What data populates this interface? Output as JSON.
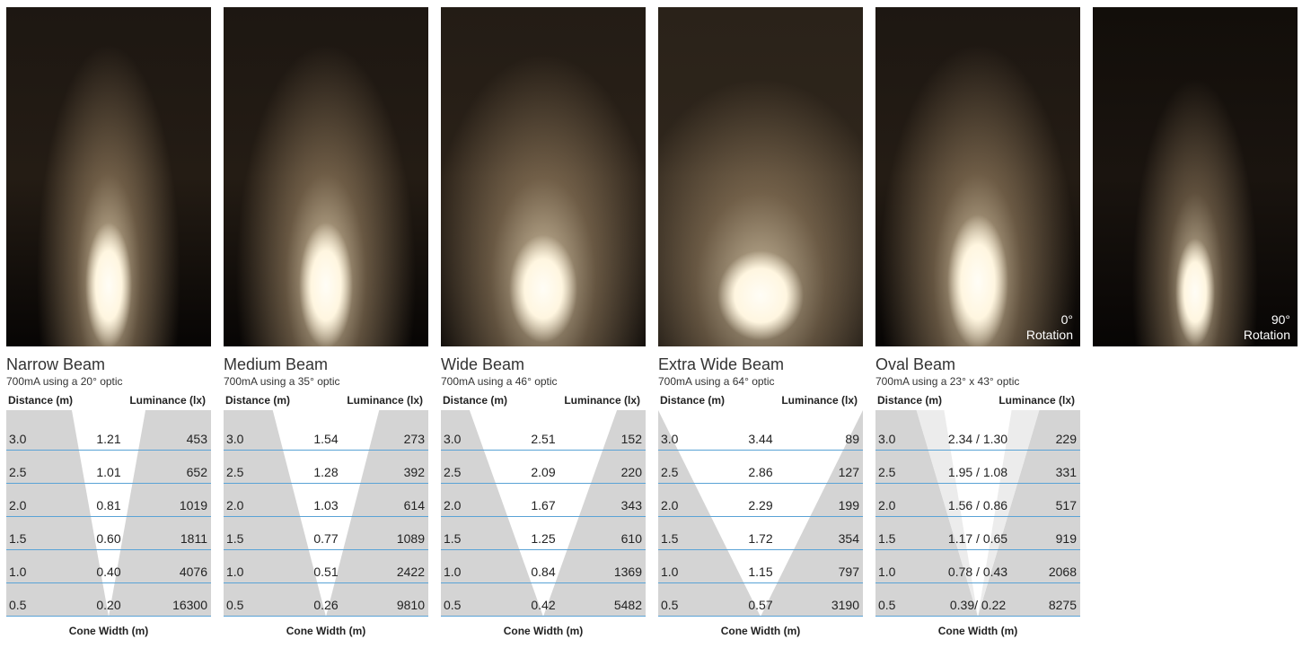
{
  "colors": {
    "rule": "#5aa3d6",
    "cone": "#d4d4d4",
    "cone_inner": "#ececec",
    "light": "#fff4dc",
    "dark": "#050403"
  },
  "rotation_90": {
    "value": "90°",
    "label": "Rotation"
  },
  "panels": [
    {
      "title": "Narrow Beam",
      "subtitle": "700mA using a 20° optic",
      "head_distance": "Distance (m)",
      "head_luminance": "Luminance (lx)",
      "footer": "Cone Width (m)",
      "beam_spread": 0.18,
      "rows": [
        {
          "d": "3.0",
          "w": "1.21",
          "l": "453"
        },
        {
          "d": "2.5",
          "w": "1.01",
          "l": "652"
        },
        {
          "d": "2.0",
          "w": "0.81",
          "l": "1019"
        },
        {
          "d": "1.5",
          "w": "0.60",
          "l": "1811"
        },
        {
          "d": "1.0",
          "w": "0.40",
          "l": "4076"
        },
        {
          "d": "0.5",
          "w": "0.20",
          "l": "16300"
        }
      ]
    },
    {
      "title": "Medium Beam",
      "subtitle": "700mA using a 35° optic",
      "head_distance": "Distance (m)",
      "head_luminance": "Luminance (lx)",
      "footer": "Cone Width (m)",
      "beam_spread": 0.26,
      "rows": [
        {
          "d": "3.0",
          "w": "1.54",
          "l": "273"
        },
        {
          "d": "2.5",
          "w": "1.28",
          "l": "392"
        },
        {
          "d": "2.0",
          "w": "1.03",
          "l": "614"
        },
        {
          "d": "1.5",
          "w": "0.77",
          "l": "1089"
        },
        {
          "d": "1.0",
          "w": "0.51",
          "l": "2422"
        },
        {
          "d": "0.5",
          "w": "0.26",
          "l": "9810"
        }
      ]
    },
    {
      "title": "Wide Beam",
      "subtitle": "700mA using a 46° optic",
      "head_distance": "Distance (m)",
      "head_luminance": "Luminance (lx)",
      "footer": "Cone Width (m)",
      "beam_spread": 0.36,
      "rows": [
        {
          "d": "3.0",
          "w": "2.51",
          "l": "152"
        },
        {
          "d": "2.5",
          "w": "2.09",
          "l": "220"
        },
        {
          "d": "2.0",
          "w": "1.67",
          "l": "343"
        },
        {
          "d": "1.5",
          "w": "1.25",
          "l": "610"
        },
        {
          "d": "1.0",
          "w": "0.84",
          "l": "1369"
        },
        {
          "d": "0.5",
          "w": "0.42",
          "l": "5482"
        }
      ]
    },
    {
      "title": "Extra Wide Beam",
      "subtitle": "700mA using a 64° optic",
      "head_distance": "Distance (m)",
      "head_luminance": "Luminance (lx)",
      "footer": "Cone Width (m)",
      "beam_spread": 0.5,
      "rows": [
        {
          "d": "3.0",
          "w": "3.44",
          "l": "89"
        },
        {
          "d": "2.5",
          "w": "2.86",
          "l": "127"
        },
        {
          "d": "2.0",
          "w": "2.29",
          "l": "199"
        },
        {
          "d": "1.5",
          "w": "1.72",
          "l": "354"
        },
        {
          "d": "1.0",
          "w": "1.15",
          "l": "797"
        },
        {
          "d": "0.5",
          "w": "0.57",
          "l": "3190"
        }
      ]
    },
    {
      "title": "Oval Beam",
      "subtitle": "700mA using a 23° x 43° optic",
      "head_distance": "Distance (m)",
      "head_luminance": "Luminance (lx)",
      "footer": "Cone Width (m)",
      "beam_spread": 0.3,
      "rotation": {
        "value": "0°",
        "label": "Rotation"
      },
      "rows": [
        {
          "d": "3.0",
          "w": "2.34 / 1.30",
          "l": "229"
        },
        {
          "d": "2.5",
          "w": "1.95 / 1.08",
          "l": "331"
        },
        {
          "d": "2.0",
          "w": "1.56 / 0.86",
          "l": "517"
        },
        {
          "d": "1.5",
          "w": "1.17 / 0.65",
          "l": "919"
        },
        {
          "d": "1.0",
          "w": "0.78 / 0.43",
          "l": "2068"
        },
        {
          "d": "0.5",
          "w": "0.39/ 0.22",
          "l": "8275"
        }
      ]
    }
  ]
}
